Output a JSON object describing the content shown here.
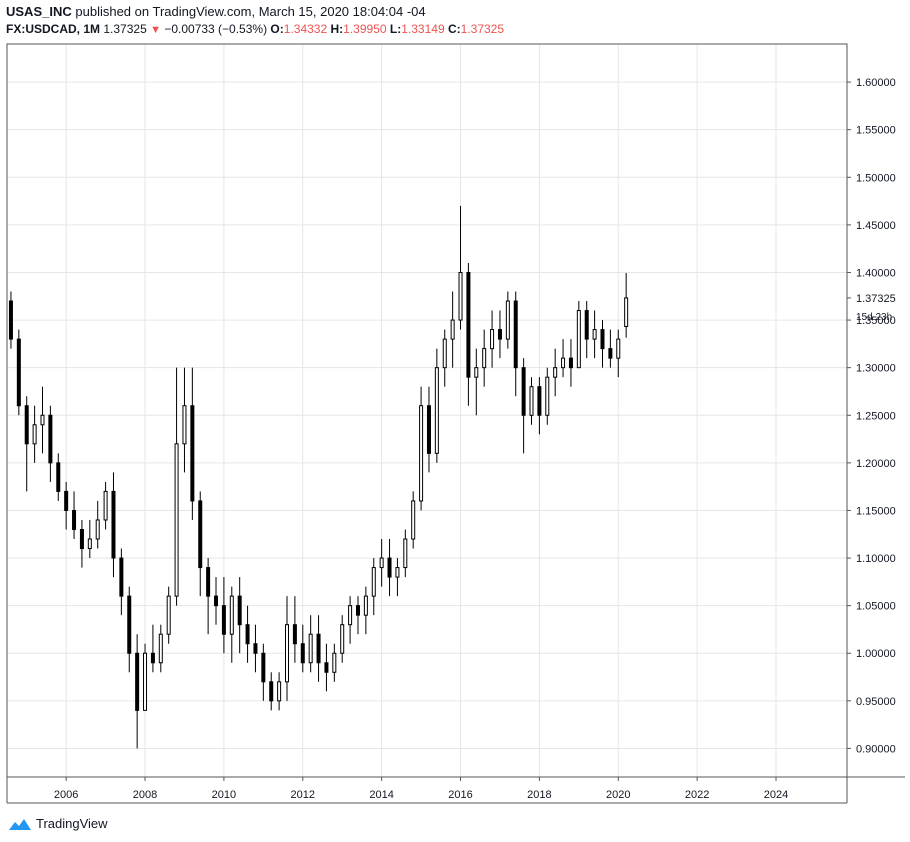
{
  "header": {
    "publisher": "USAS_INC",
    "published_text": "published on TradingView.com, March 15, 2020 18:04:04 -04",
    "symbol": "FX:USDCAD, 1M",
    "last": "1.37325",
    "change": "−0.00733 (−0.53%)",
    "o_label": "O:",
    "o_value": "1.34332",
    "h_label": "H:",
    "h_value": "1.39950",
    "l_label": "L:",
    "l_value": "1.33149",
    "c_label": "C:",
    "c_value": "1.37325"
  },
  "footer": {
    "brand": "TradingView"
  },
  "colors": {
    "up": "#000000",
    "down": "#000000",
    "accent_red": "#ef5350",
    "grid": "#e6e6e6",
    "axis": "#555555"
  },
  "chart_data": {
    "type": "candlestick-ohlc",
    "title": "",
    "x_ticks": [
      "2006",
      "2008",
      "2010",
      "2012",
      "2014",
      "2016",
      "2018",
      "2020",
      "2022",
      "2024"
    ],
    "y_ticks": [
      "0.90000",
      "0.95000",
      "1.00000",
      "1.05000",
      "1.10000",
      "1.15000",
      "1.20000",
      "1.25000",
      "1.30000",
      "1.35000",
      "1.40000",
      "1.45000",
      "1.50000",
      "1.55000",
      "1.60000"
    ],
    "ylim": [
      0.87,
      1.64
    ],
    "xlim": [
      2004.5,
      2025.8
    ],
    "last_price_label": "1.37325",
    "countdown_label": "15d 23h",
    "series": [
      {
        "t": 2004.6,
        "o": 1.37,
        "h": 1.38,
        "l": 1.32,
        "c": 1.33
      },
      {
        "t": 2004.8,
        "o": 1.33,
        "h": 1.34,
        "l": 1.25,
        "c": 1.26
      },
      {
        "t": 2005.0,
        "o": 1.26,
        "h": 1.27,
        "l": 1.17,
        "c": 1.22
      },
      {
        "t": 2005.2,
        "o": 1.22,
        "h": 1.26,
        "l": 1.2,
        "c": 1.24
      },
      {
        "t": 2005.4,
        "o": 1.24,
        "h": 1.28,
        "l": 1.21,
        "c": 1.25
      },
      {
        "t": 2005.6,
        "o": 1.25,
        "h": 1.26,
        "l": 1.18,
        "c": 1.2
      },
      {
        "t": 2005.8,
        "o": 1.2,
        "h": 1.21,
        "l": 1.16,
        "c": 1.17
      },
      {
        "t": 2006.0,
        "o": 1.17,
        "h": 1.18,
        "l": 1.13,
        "c": 1.15
      },
      {
        "t": 2006.2,
        "o": 1.15,
        "h": 1.17,
        "l": 1.12,
        "c": 1.13
      },
      {
        "t": 2006.4,
        "o": 1.13,
        "h": 1.14,
        "l": 1.09,
        "c": 1.11
      },
      {
        "t": 2006.6,
        "o": 1.11,
        "h": 1.14,
        "l": 1.1,
        "c": 1.12
      },
      {
        "t": 2006.8,
        "o": 1.12,
        "h": 1.16,
        "l": 1.11,
        "c": 1.14
      },
      {
        "t": 2007.0,
        "o": 1.14,
        "h": 1.18,
        "l": 1.13,
        "c": 1.17
      },
      {
        "t": 2007.2,
        "o": 1.17,
        "h": 1.19,
        "l": 1.08,
        "c": 1.1
      },
      {
        "t": 2007.4,
        "o": 1.1,
        "h": 1.11,
        "l": 1.04,
        "c": 1.06
      },
      {
        "t": 2007.6,
        "o": 1.06,
        "h": 1.07,
        "l": 0.98,
        "c": 1.0
      },
      {
        "t": 2007.8,
        "o": 1.0,
        "h": 1.02,
        "l": 0.9,
        "c": 0.94
      },
      {
        "t": 2008.0,
        "o": 0.94,
        "h": 1.01,
        "l": 0.94,
        "c": 1.0
      },
      {
        "t": 2008.2,
        "o": 1.0,
        "h": 1.03,
        "l": 0.98,
        "c": 0.99
      },
      {
        "t": 2008.4,
        "o": 0.99,
        "h": 1.03,
        "l": 0.98,
        "c": 1.02
      },
      {
        "t": 2008.6,
        "o": 1.02,
        "h": 1.07,
        "l": 1.01,
        "c": 1.06
      },
      {
        "t": 2008.8,
        "o": 1.06,
        "h": 1.3,
        "l": 1.05,
        "c": 1.22
      },
      {
        "t": 2009.0,
        "o": 1.22,
        "h": 1.3,
        "l": 1.19,
        "c": 1.26
      },
      {
        "t": 2009.2,
        "o": 1.26,
        "h": 1.3,
        "l": 1.14,
        "c": 1.16
      },
      {
        "t": 2009.4,
        "o": 1.16,
        "h": 1.17,
        "l": 1.06,
        "c": 1.09
      },
      {
        "t": 2009.6,
        "o": 1.09,
        "h": 1.1,
        "l": 1.02,
        "c": 1.06
      },
      {
        "t": 2009.8,
        "o": 1.06,
        "h": 1.08,
        "l": 1.03,
        "c": 1.05
      },
      {
        "t": 2010.0,
        "o": 1.05,
        "h": 1.08,
        "l": 1.0,
        "c": 1.02
      },
      {
        "t": 2010.2,
        "o": 1.02,
        "h": 1.07,
        "l": 0.99,
        "c": 1.06
      },
      {
        "t": 2010.4,
        "o": 1.06,
        "h": 1.08,
        "l": 1.0,
        "c": 1.03
      },
      {
        "t": 2010.6,
        "o": 1.03,
        "h": 1.05,
        "l": 0.99,
        "c": 1.01
      },
      {
        "t": 2010.8,
        "o": 1.01,
        "h": 1.03,
        "l": 0.98,
        "c": 1.0
      },
      {
        "t": 2011.0,
        "o": 1.0,
        "h": 1.01,
        "l": 0.95,
        "c": 0.97
      },
      {
        "t": 2011.2,
        "o": 0.97,
        "h": 0.98,
        "l": 0.94,
        "c": 0.95
      },
      {
        "t": 2011.4,
        "o": 0.95,
        "h": 0.98,
        "l": 0.94,
        "c": 0.97
      },
      {
        "t": 2011.6,
        "o": 0.97,
        "h": 1.06,
        "l": 0.95,
        "c": 1.03
      },
      {
        "t": 2011.8,
        "o": 1.03,
        "h": 1.06,
        "l": 0.99,
        "c": 1.01
      },
      {
        "t": 2012.0,
        "o": 1.01,
        "h": 1.03,
        "l": 0.98,
        "c": 0.99
      },
      {
        "t": 2012.2,
        "o": 0.99,
        "h": 1.04,
        "l": 0.98,
        "c": 1.02
      },
      {
        "t": 2012.4,
        "o": 1.02,
        "h": 1.04,
        "l": 0.97,
        "c": 0.99
      },
      {
        "t": 2012.6,
        "o": 0.99,
        "h": 1.01,
        "l": 0.96,
        "c": 0.98
      },
      {
        "t": 2012.8,
        "o": 0.98,
        "h": 1.01,
        "l": 0.97,
        "c": 1.0
      },
      {
        "t": 2013.0,
        "o": 1.0,
        "h": 1.04,
        "l": 0.99,
        "c": 1.03
      },
      {
        "t": 2013.2,
        "o": 1.03,
        "h": 1.06,
        "l": 1.01,
        "c": 1.05
      },
      {
        "t": 2013.4,
        "o": 1.05,
        "h": 1.06,
        "l": 1.02,
        "c": 1.04
      },
      {
        "t": 2013.6,
        "o": 1.04,
        "h": 1.07,
        "l": 1.02,
        "c": 1.06
      },
      {
        "t": 2013.8,
        "o": 1.06,
        "h": 1.1,
        "l": 1.04,
        "c": 1.09
      },
      {
        "t": 2014.0,
        "o": 1.09,
        "h": 1.12,
        "l": 1.07,
        "c": 1.1
      },
      {
        "t": 2014.2,
        "o": 1.1,
        "h": 1.12,
        "l": 1.06,
        "c": 1.08
      },
      {
        "t": 2014.4,
        "o": 1.08,
        "h": 1.1,
        "l": 1.06,
        "c": 1.09
      },
      {
        "t": 2014.6,
        "o": 1.09,
        "h": 1.13,
        "l": 1.08,
        "c": 1.12
      },
      {
        "t": 2014.8,
        "o": 1.12,
        "h": 1.17,
        "l": 1.11,
        "c": 1.16
      },
      {
        "t": 2015.0,
        "o": 1.16,
        "h": 1.28,
        "l": 1.15,
        "c": 1.26
      },
      {
        "t": 2015.2,
        "o": 1.26,
        "h": 1.28,
        "l": 1.19,
        "c": 1.21
      },
      {
        "t": 2015.4,
        "o": 1.21,
        "h": 1.32,
        "l": 1.2,
        "c": 1.3
      },
      {
        "t": 2015.6,
        "o": 1.3,
        "h": 1.34,
        "l": 1.28,
        "c": 1.33
      },
      {
        "t": 2015.8,
        "o": 1.33,
        "h": 1.38,
        "l": 1.3,
        "c": 1.35
      },
      {
        "t": 2016.0,
        "o": 1.35,
        "h": 1.47,
        "l": 1.34,
        "c": 1.4
      },
      {
        "t": 2016.2,
        "o": 1.4,
        "h": 1.41,
        "l": 1.26,
        "c": 1.29
      },
      {
        "t": 2016.4,
        "o": 1.29,
        "h": 1.32,
        "l": 1.25,
        "c": 1.3
      },
      {
        "t": 2016.6,
        "o": 1.3,
        "h": 1.34,
        "l": 1.28,
        "c": 1.32
      },
      {
        "t": 2016.8,
        "o": 1.32,
        "h": 1.36,
        "l": 1.3,
        "c": 1.34
      },
      {
        "t": 2017.0,
        "o": 1.34,
        "h": 1.36,
        "l": 1.31,
        "c": 1.33
      },
      {
        "t": 2017.2,
        "o": 1.33,
        "h": 1.38,
        "l": 1.32,
        "c": 1.37
      },
      {
        "t": 2017.4,
        "o": 1.37,
        "h": 1.38,
        "l": 1.27,
        "c": 1.3
      },
      {
        "t": 2017.6,
        "o": 1.3,
        "h": 1.31,
        "l": 1.21,
        "c": 1.25
      },
      {
        "t": 2017.8,
        "o": 1.25,
        "h": 1.29,
        "l": 1.24,
        "c": 1.28
      },
      {
        "t": 2018.0,
        "o": 1.28,
        "h": 1.29,
        "l": 1.23,
        "c": 1.25
      },
      {
        "t": 2018.2,
        "o": 1.25,
        "h": 1.3,
        "l": 1.24,
        "c": 1.29
      },
      {
        "t": 2018.4,
        "o": 1.29,
        "h": 1.32,
        "l": 1.27,
        "c": 1.3
      },
      {
        "t": 2018.6,
        "o": 1.3,
        "h": 1.33,
        "l": 1.29,
        "c": 1.31
      },
      {
        "t": 2018.8,
        "o": 1.31,
        "h": 1.33,
        "l": 1.28,
        "c": 1.3
      },
      {
        "t": 2019.0,
        "o": 1.3,
        "h": 1.37,
        "l": 1.3,
        "c": 1.36
      },
      {
        "t": 2019.2,
        "o": 1.36,
        "h": 1.37,
        "l": 1.31,
        "c": 1.33
      },
      {
        "t": 2019.4,
        "o": 1.33,
        "h": 1.36,
        "l": 1.31,
        "c": 1.34
      },
      {
        "t": 2019.6,
        "o": 1.34,
        "h": 1.35,
        "l": 1.3,
        "c": 1.32
      },
      {
        "t": 2019.8,
        "o": 1.32,
        "h": 1.34,
        "l": 1.3,
        "c": 1.31
      },
      {
        "t": 2020.0,
        "o": 1.31,
        "h": 1.34,
        "l": 1.29,
        "c": 1.33
      },
      {
        "t": 2020.2,
        "o": 1.34332,
        "h": 1.3995,
        "l": 1.33149,
        "c": 1.37325
      }
    ]
  }
}
